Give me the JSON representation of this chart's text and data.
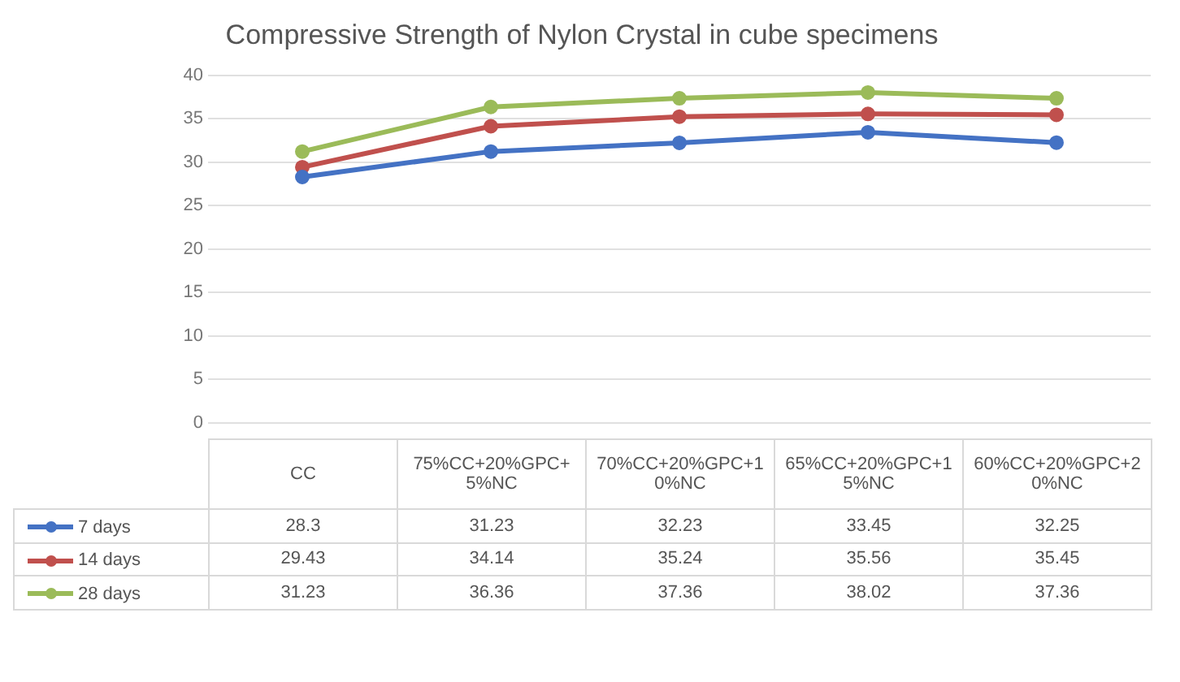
{
  "chart_data": {
    "type": "line",
    "title": "Compressive Strength of Nylon Crystal in cube specimens",
    "categories": [
      "CC",
      "75%CC+20%GPC+5%NC",
      "70%CC+20%GPC+10%NC",
      "65%CC+20%GPC+15%NC",
      "60%CC+20%GPC+20%NC"
    ],
    "series": [
      {
        "name": "7 days",
        "color": "#4472c4",
        "values": [
          28.3,
          31.23,
          32.23,
          33.45,
          32.25
        ]
      },
      {
        "name": "14 days",
        "color": "#c0504d",
        "values": [
          29.43,
          34.14,
          35.24,
          35.56,
          35.45
        ]
      },
      {
        "name": "28 days",
        "color": "#9bbb59",
        "values": [
          31.23,
          36.36,
          37.36,
          38.02,
          37.36
        ]
      }
    ],
    "ylim": [
      0,
      40
    ],
    "yticks": [
      0,
      5,
      10,
      15,
      20,
      25,
      30,
      35,
      40
    ],
    "grid": "y",
    "marker": "circle",
    "line_style": "solid",
    "legend": "bottom",
    "data_labels": true
  }
}
